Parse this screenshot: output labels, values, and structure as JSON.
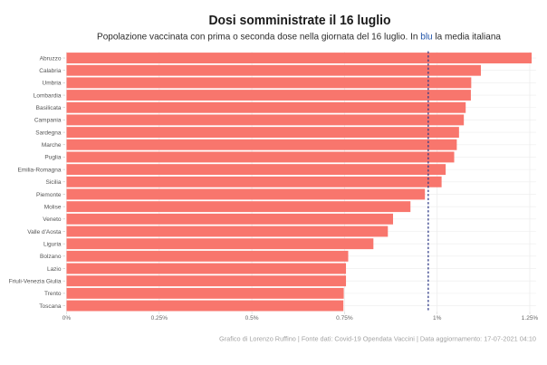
{
  "chart_data": {
    "type": "bar",
    "orientation": "horizontal",
    "title": "Dosi somministrate il 16 luglio",
    "subtitle_parts": [
      "Popolazione vaccinata con prima o seconda dose nella giornata del 16 luglio. In ",
      "blu",
      " la media italiana"
    ],
    "categories": [
      "Abruzzo",
      "Calabria",
      "Umbria",
      "Lombardia",
      "Basilicata",
      "Campania",
      "Sardegna",
      "Marche",
      "Puglia",
      "Emilia-Romagna",
      "Sicilia",
      "Piemonte",
      "Molise",
      "Veneto",
      "Valle d'Aosta",
      "Liguria",
      "Bolzano",
      "Lazio",
      "Friuli-Venezia Giulia",
      "Trento",
      "Toscana"
    ],
    "values": [
      1.255,
      1.118,
      1.092,
      1.091,
      1.077,
      1.072,
      1.059,
      1.053,
      1.046,
      1.023,
      1.012,
      0.967,
      0.928,
      0.881,
      0.867,
      0.828,
      0.76,
      0.754,
      0.754,
      0.748,
      0.747
    ],
    "unit": "%",
    "xlabel": "",
    "ylabel": "",
    "xlim": [
      0,
      1.267
    ],
    "xticks": [
      0,
      0.25,
      0.5,
      0.75,
      1,
      1.25
    ],
    "xtick_labels": [
      "0%",
      "0.25%",
      "0.5%",
      "0.75%",
      "1%",
      "1.25%"
    ],
    "grid": true,
    "reference_line": {
      "label": "media italiana",
      "value": 0.976,
      "style": "dotted"
    },
    "colors": {
      "bar": "#F8766D",
      "mean_line": "#2E3A87",
      "highlight_text": "#2154A8",
      "grid": "#ECECEC"
    }
  },
  "caption": "Grafico di Lorenzo Ruffino | Fonte dati: Covid-19 Opendata Vaccini | Data aggiornamento: 17-07-2021 04:10"
}
